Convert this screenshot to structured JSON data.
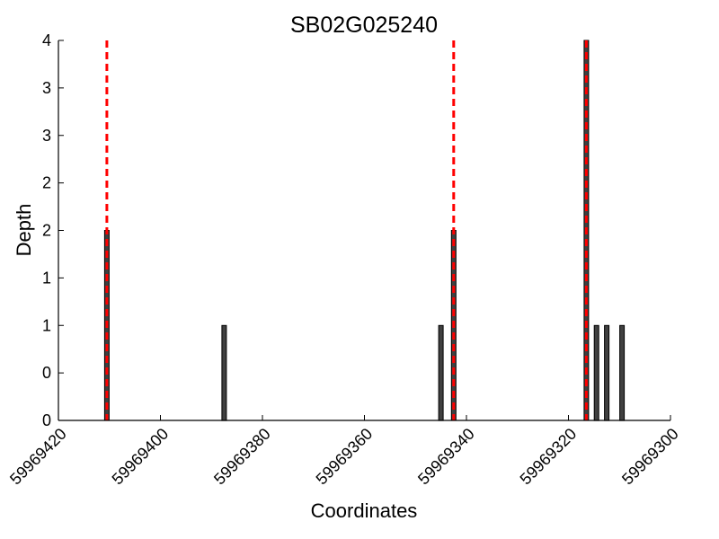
{
  "chart_data": {
    "type": "bar",
    "title": "SB02G025240",
    "xlabel": "Coordinates",
    "ylabel": "Depth",
    "xlim": [
      59969420,
      59969300
    ],
    "ylim": [
      0,
      4
    ],
    "x_ticks": [
      "59969420",
      "59969400",
      "59969380",
      "59969360",
      "59969340",
      "59969320",
      "59969300"
    ],
    "x_tick_values": [
      59969420,
      59969400,
      59969380,
      59969360,
      59969340,
      59969320,
      59969300
    ],
    "y_ticks": [
      "0",
      "0",
      "1",
      "1",
      "2",
      "2",
      "3",
      "3",
      "4"
    ],
    "y_tick_values": [
      0,
      0.5,
      1,
      1.5,
      2,
      2.5,
      3,
      3.5,
      4
    ],
    "bars": [
      {
        "x": 59969410.5,
        "value": 2
      },
      {
        "x": 59969387.5,
        "value": 1
      },
      {
        "x": 59969345,
        "value": 1
      },
      {
        "x": 59969342.5,
        "value": 2
      },
      {
        "x": 59969316.5,
        "value": 4
      },
      {
        "x": 59969314.5,
        "value": 1
      },
      {
        "x": 59969312.5,
        "value": 1
      },
      {
        "x": 59969309.5,
        "value": 1
      }
    ],
    "markers": [
      59969410.5,
      59969342.5,
      59969316.5
    ],
    "bar_color": "#404040",
    "marker_color": "#ff0000",
    "grid": false,
    "legend": false
  }
}
